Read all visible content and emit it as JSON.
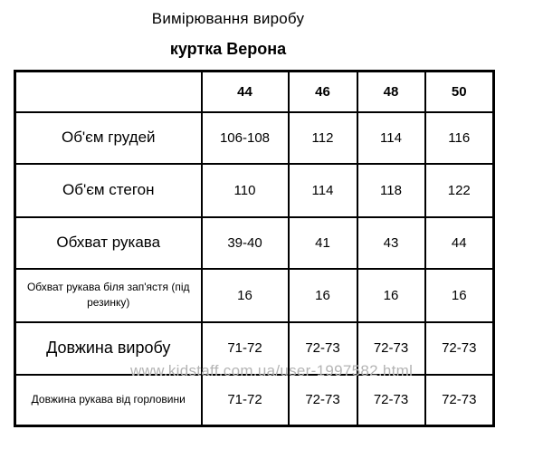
{
  "page": {
    "title": "Вимірювання виробу",
    "subtitle": "куртка Верона"
  },
  "table": {
    "header": [
      "",
      "44",
      "46",
      "48",
      "50"
    ],
    "rows": [
      {
        "label": "Об'єм грудей",
        "size": "large",
        "values": [
          "106-108",
          "112",
          "114",
          "116"
        ]
      },
      {
        "label": "Об'єм стегон",
        "size": "large",
        "values": [
          "110",
          "114",
          "118",
          "122"
        ]
      },
      {
        "label": "Обхват рукава",
        "size": "large",
        "values": [
          "39-40",
          "41",
          "43",
          "44"
        ]
      },
      {
        "label": "Обхват рукава  біля  зап'ястя (під\nрезинку)",
        "size": "small",
        "values": [
          "16",
          "16",
          "16",
          "16"
        ]
      },
      {
        "label": "Довжина виробу",
        "size": "xlarge",
        "values": [
          "71-72",
          "72-73",
          "72-73",
          "72-73"
        ]
      },
      {
        "label": "Довжина рукава від горловини",
        "size": "small",
        "values": [
          "71-72",
          "72-73",
          "72-73",
          "72-73"
        ]
      }
    ]
  },
  "watermark": {
    "text": "www.kidstaff.com.ua/user-1997582.html",
    "color": "#b4b4b4"
  },
  "colors": {
    "background": "#ffffff",
    "text": "#000000",
    "border": "#000000"
  }
}
